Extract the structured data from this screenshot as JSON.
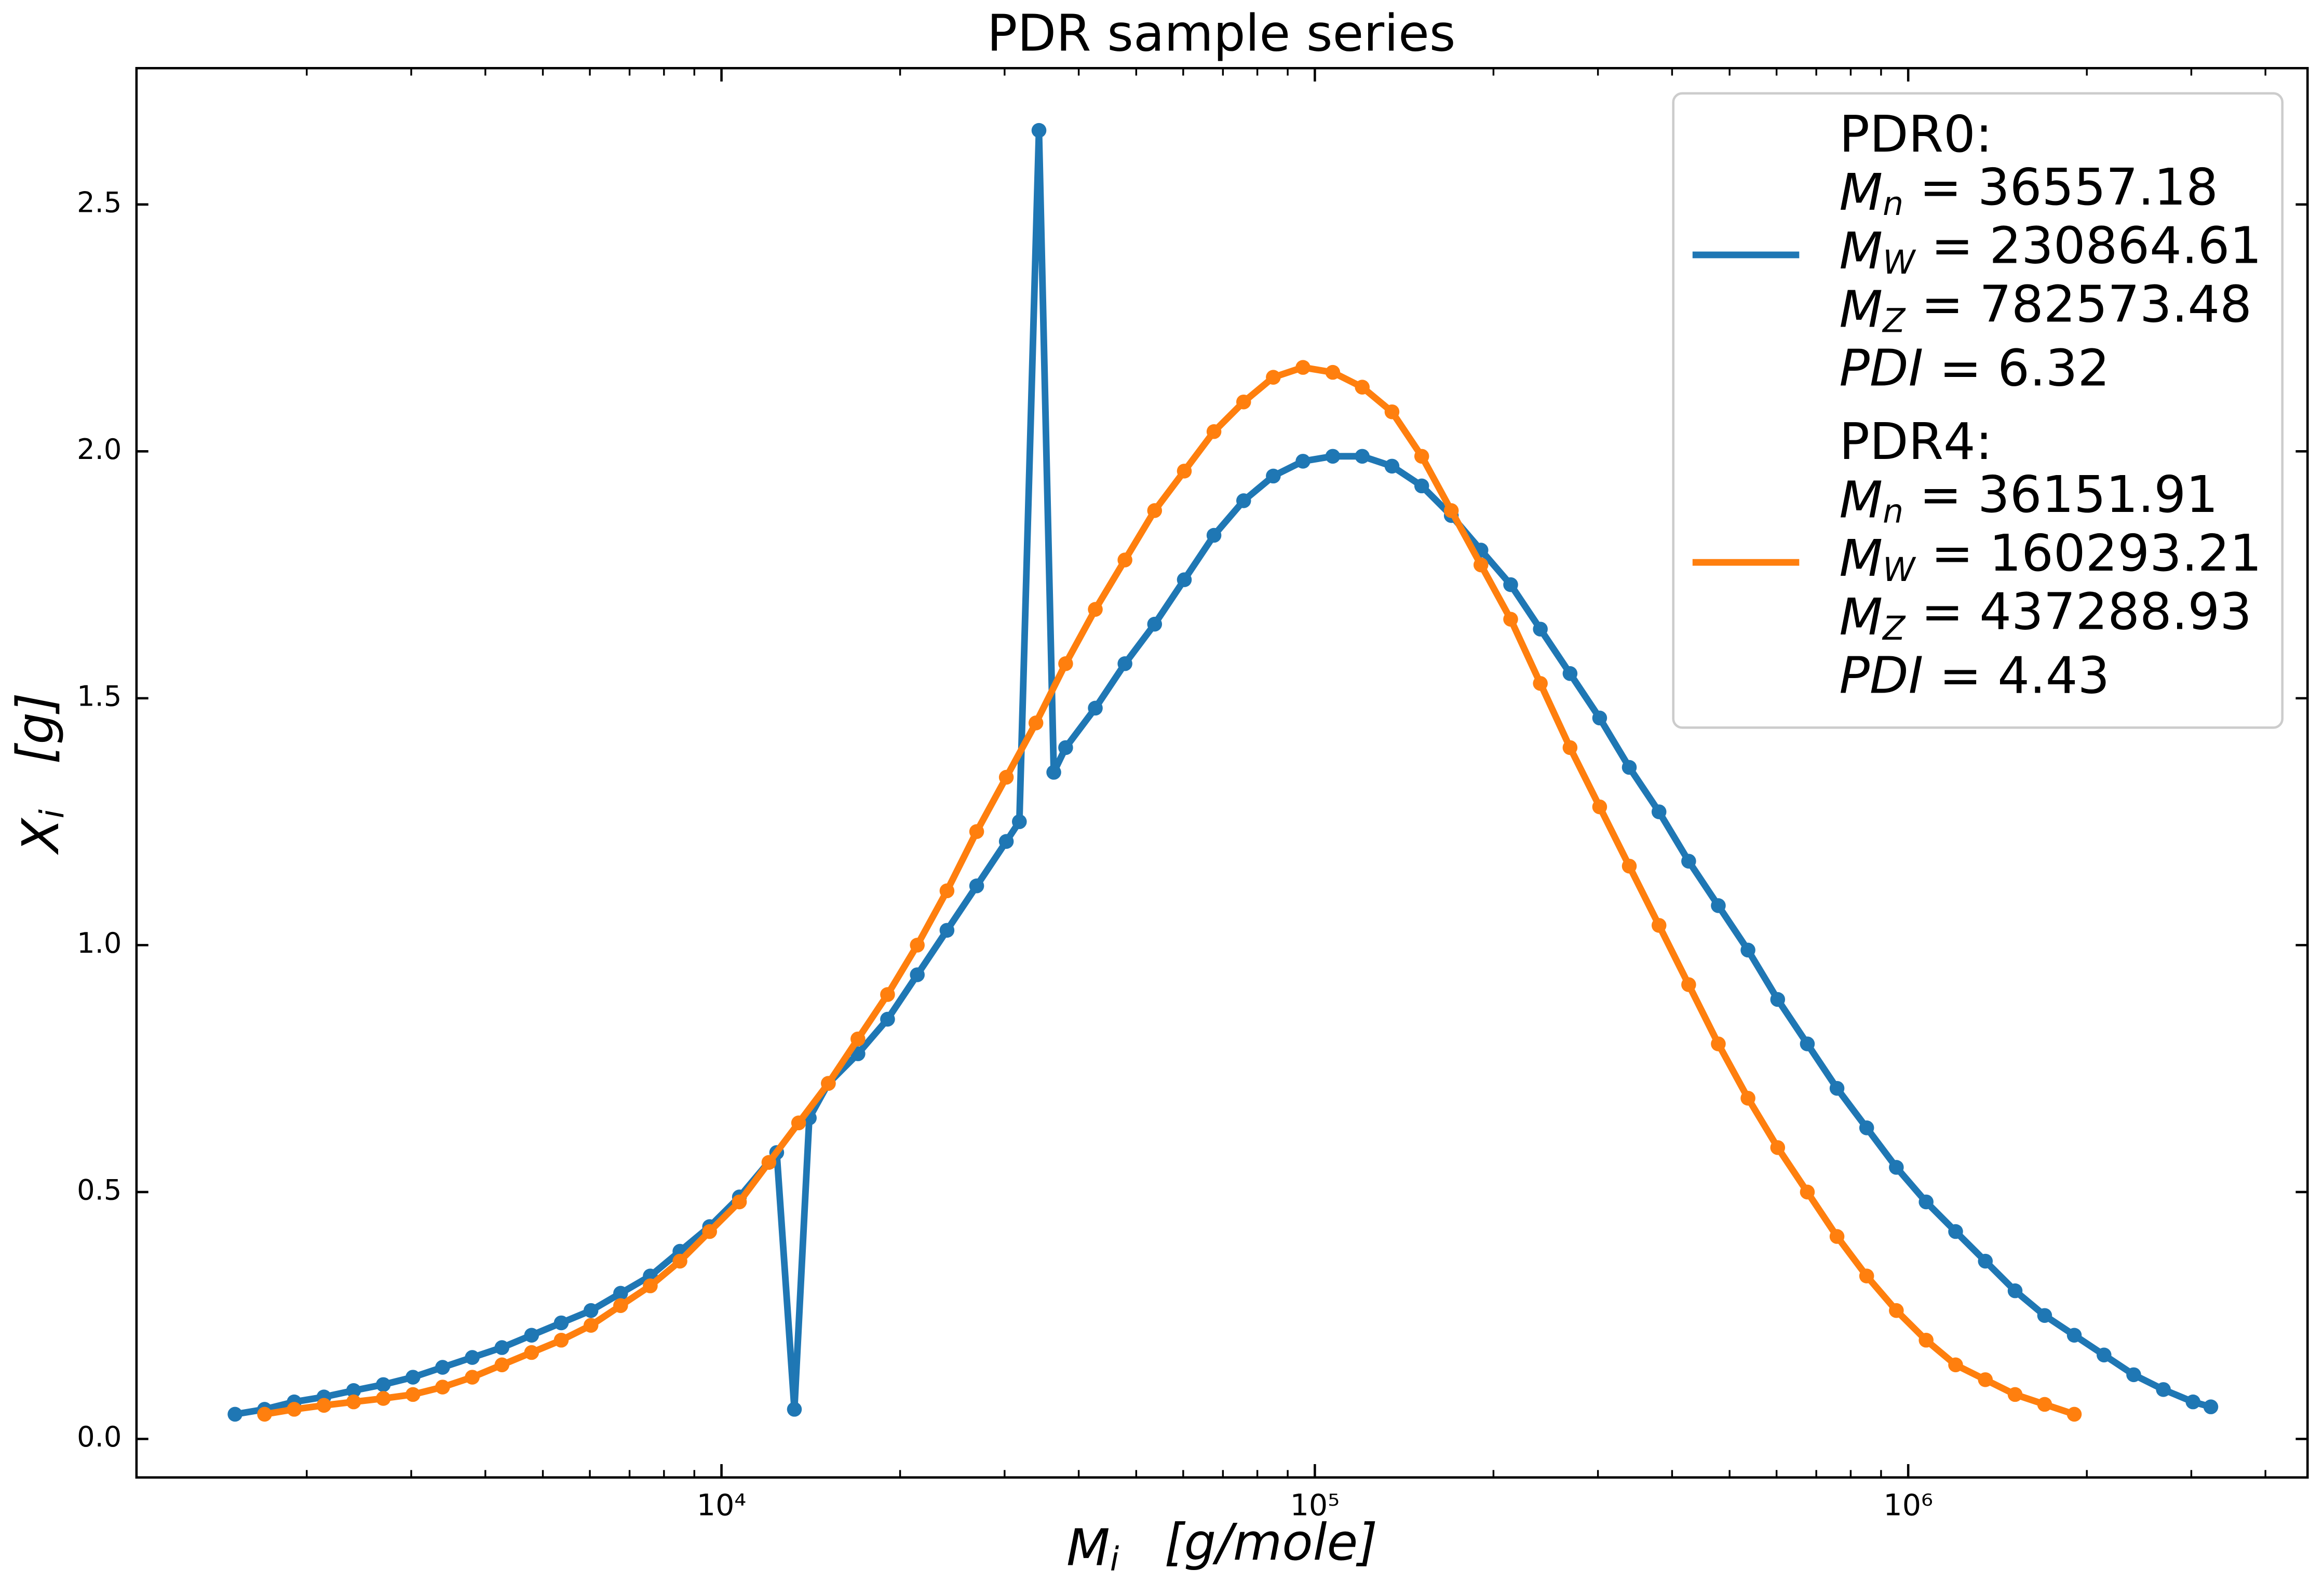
{
  "chart_data": {
    "type": "line",
    "title": "PDR sample series",
    "xlabel": {
      "symbol": "M",
      "sub": "i",
      "unit": "[g/mole]"
    },
    "ylabel": {
      "symbol": "X",
      "sub": "i",
      "unit": "[g]"
    },
    "xscale": "log",
    "xlim": [
      1033,
      4710000
    ],
    "ylim": [
      -0.078,
      2.776
    ],
    "xticks": [
      {
        "value": 10000,
        "label": "10⁴"
      },
      {
        "value": 100000,
        "label": "10⁵"
      },
      {
        "value": 1000000,
        "label": "10⁶"
      }
    ],
    "xminorticks": [
      2000,
      3000,
      4000,
      5000,
      6000,
      7000,
      8000,
      9000,
      20000,
      30000,
      40000,
      50000,
      60000,
      70000,
      80000,
      90000,
      200000,
      300000,
      400000,
      500000,
      600000,
      700000,
      800000,
      900000,
      2000000,
      3000000,
      4000000
    ],
    "yticks": [
      {
        "value": 0,
        "label": "0.0"
      },
      0.5,
      {
        "value": 1,
        "label": "1.0"
      },
      1.5,
      {
        "value": 2,
        "label": "2.0"
      },
      2.5
    ],
    "legend": "upper right",
    "series": [
      {
        "name": "PDR0:",
        "color": "#1f77b4",
        "stats": [
          {
            "symbol": "M",
            "sub": "n",
            "value": " = 36557.18"
          },
          {
            "symbol": "M",
            "sub": "W",
            "value": " = 230864.61"
          },
          {
            "symbol": "M",
            "sub": "Z",
            "value": " = 782573.48"
          },
          {
            "symbol": "PDI",
            "value": " = 6.32"
          }
        ],
        "x": [
          1514,
          1698,
          1905,
          2138,
          2399,
          2692,
          3020,
          3388,
          3802,
          4266,
          4786,
          5370,
          6026,
          6761,
          7586,
          8511,
          9550,
          10720,
          12390,
          13270,
          14060,
          15140,
          16980,
          19050,
          21380,
          23990,
          26920,
          30200,
          31770,
          34280,
          36310,
          38020,
          42660,
          47860,
          53700,
          60260,
          67610,
          75860,
          85110,
          95500,
          107200,
          120200,
          134900,
          151400,
          169800,
          190500,
          213800,
          239900,
          269200,
          302000,
          338800,
          380200,
          426600,
          478600,
          537000,
          602600,
          676100,
          758600,
          851100,
          955000,
          1072000,
          1202000,
          1349000,
          1514000,
          1698000,
          1905000,
          2138000,
          2399000,
          2692000,
          3020000,
          3236000
        ],
        "values": [
          0.05,
          0.06,
          0.075,
          0.085,
          0.098,
          0.11,
          0.125,
          0.145,
          0.165,
          0.185,
          0.21,
          0.235,
          0.26,
          0.295,
          0.33,
          0.38,
          0.43,
          0.49,
          0.58,
          0.06,
          0.65,
          0.72,
          0.78,
          0.85,
          0.94,
          1.03,
          1.12,
          1.21,
          1.25,
          2.65,
          1.35,
          1.4,
          1.48,
          1.57,
          1.65,
          1.74,
          1.83,
          1.9,
          1.95,
          1.98,
          1.99,
          1.99,
          1.97,
          1.93,
          1.87,
          1.8,
          1.73,
          1.64,
          1.55,
          1.46,
          1.36,
          1.27,
          1.17,
          1.08,
          0.99,
          0.89,
          0.8,
          0.71,
          0.63,
          0.55,
          0.48,
          0.42,
          0.36,
          0.3,
          0.25,
          0.21,
          0.17,
          0.13,
          0.1,
          0.075,
          0.065
        ]
      },
      {
        "name": "PDR4:",
        "color": "#ff7f0e",
        "stats": [
          {
            "symbol": "M",
            "sub": "n",
            "value": " = 36151.91"
          },
          {
            "symbol": "M",
            "sub": "W",
            "value": " = 160293.21"
          },
          {
            "symbol": "M",
            "sub": "Z",
            "value": " = 437288.93"
          },
          {
            "symbol": "PDI",
            "value": " = 4.43"
          }
        ],
        "x": [
          1698,
          1905,
          2138,
          2399,
          2692,
          3020,
          3388,
          3802,
          4266,
          4786,
          5370,
          6026,
          6761,
          7586,
          8511,
          9550,
          10720,
          12020,
          13490,
          15140,
          16980,
          19050,
          21380,
          23990,
          26920,
          30200,
          33880,
          38020,
          42660,
          47860,
          53700,
          60260,
          67610,
          75860,
          85110,
          95500,
          107200,
          120200,
          134900,
          151400,
          169800,
          190500,
          213800,
          239900,
          269200,
          302000,
          338800,
          380200,
          426600,
          478600,
          537000,
          602600,
          676100,
          758600,
          851100,
          955000,
          1072000,
          1202000,
          1349000,
          1514000,
          1698000,
          1905000
        ],
        "values": [
          0.05,
          0.06,
          0.068,
          0.075,
          0.082,
          0.09,
          0.105,
          0.125,
          0.15,
          0.175,
          0.2,
          0.23,
          0.27,
          0.31,
          0.36,
          0.42,
          0.48,
          0.56,
          0.64,
          0.72,
          0.81,
          0.9,
          1.0,
          1.11,
          1.23,
          1.34,
          1.45,
          1.57,
          1.68,
          1.78,
          1.88,
          1.96,
          2.04,
          2.1,
          2.15,
          2.17,
          2.16,
          2.13,
          2.08,
          1.99,
          1.88,
          1.77,
          1.66,
          1.53,
          1.4,
          1.28,
          1.16,
          1.04,
          0.92,
          0.8,
          0.69,
          0.59,
          0.5,
          0.41,
          0.33,
          0.26,
          0.2,
          0.15,
          0.12,
          0.09,
          0.07,
          0.05
        ]
      }
    ]
  }
}
